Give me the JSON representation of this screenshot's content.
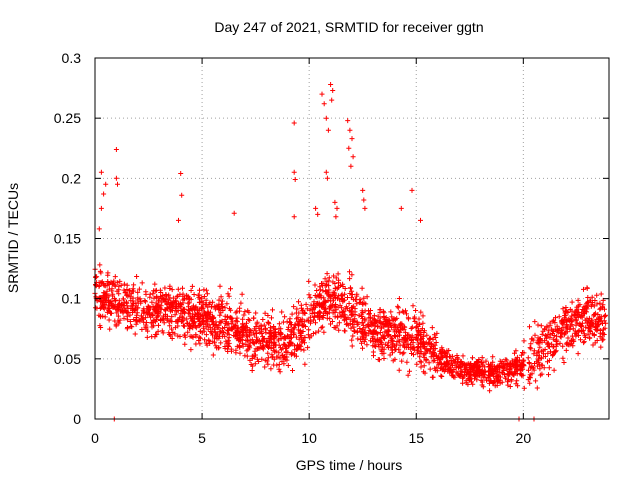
{
  "chart_data": {
    "type": "scatter",
    "title": "Day 247 of 2021, SRMTID for receiver ggtn",
    "xlabel": "GPS time / hours",
    "ylabel": "SRMTID / TECUs",
    "xlim": [
      0,
      24
    ],
    "ylim": [
      0,
      0.3
    ],
    "xticks": [
      "0",
      "5",
      "10",
      "15",
      "20"
    ],
    "xtick_values": [
      0,
      5,
      10,
      15,
      20
    ],
    "yticks": [
      "0",
      "0.05",
      "0.1",
      "0.15",
      "0.2",
      "0.25",
      "0.3"
    ],
    "ytick_values": [
      0,
      0.05,
      0.1,
      0.15,
      0.2,
      0.25,
      0.3
    ],
    "grid": true,
    "marker": "+",
    "color": "#ff0000",
    "series": [
      {
        "name": "SRMTID",
        "trend": [
          [
            0,
            0.105
          ],
          [
            1,
            0.095
          ],
          [
            2,
            0.09
          ],
          [
            3,
            0.09
          ],
          [
            4,
            0.088
          ],
          [
            5,
            0.085
          ],
          [
            6,
            0.08
          ],
          [
            7,
            0.07
          ],
          [
            8,
            0.063
          ],
          [
            9,
            0.063
          ],
          [
            10,
            0.085
          ],
          [
            11,
            0.1
          ],
          [
            12,
            0.09
          ],
          [
            13,
            0.072
          ],
          [
            14,
            0.07
          ],
          [
            15,
            0.07
          ],
          [
            16,
            0.05
          ],
          [
            17,
            0.042
          ],
          [
            18,
            0.04
          ],
          [
            19,
            0.038
          ],
          [
            20,
            0.045
          ],
          [
            21,
            0.06
          ],
          [
            22,
            0.075
          ],
          [
            23,
            0.085
          ],
          [
            24,
            0.08
          ]
        ],
        "notable_points": [
          [
            0.2,
            0.158
          ],
          [
            0.3,
            0.205
          ],
          [
            0.5,
            0.195
          ],
          [
            0.4,
            0.187
          ],
          [
            0.3,
            0.175
          ],
          [
            1.0,
            0.224
          ],
          [
            1.0,
            0.2
          ],
          [
            1.05,
            0.195
          ],
          [
            4.0,
            0.204
          ],
          [
            4.05,
            0.186
          ],
          [
            3.9,
            0.165
          ],
          [
            6.5,
            0.171
          ],
          [
            9.3,
            0.246
          ],
          [
            9.3,
            0.205
          ],
          [
            9.35,
            0.199
          ],
          [
            9.3,
            0.168
          ],
          [
            10.6,
            0.27
          ],
          [
            10.7,
            0.262
          ],
          [
            10.8,
            0.25
          ],
          [
            11.0,
            0.278
          ],
          [
            11.1,
            0.273
          ],
          [
            11.05,
            0.265
          ],
          [
            10.9,
            0.24
          ],
          [
            10.8,
            0.205
          ],
          [
            10.85,
            0.2
          ],
          [
            11.2,
            0.18
          ],
          [
            11.3,
            0.175
          ],
          [
            11.25,
            0.168
          ],
          [
            11.8,
            0.248
          ],
          [
            11.9,
            0.24
          ],
          [
            11.85,
            0.225
          ],
          [
            12.0,
            0.233
          ],
          [
            12.05,
            0.218
          ],
          [
            11.95,
            0.21
          ],
          [
            10.3,
            0.175
          ],
          [
            10.4,
            0.17
          ],
          [
            12.5,
            0.19
          ],
          [
            12.55,
            0.182
          ],
          [
            12.6,
            0.175
          ],
          [
            14.8,
            0.19
          ],
          [
            14.3,
            0.175
          ],
          [
            15.2,
            0.165
          ],
          [
            0.9,
            0.0
          ],
          [
            19.8,
            0.0
          ],
          [
            20.5,
            0.0
          ]
        ]
      }
    ]
  }
}
